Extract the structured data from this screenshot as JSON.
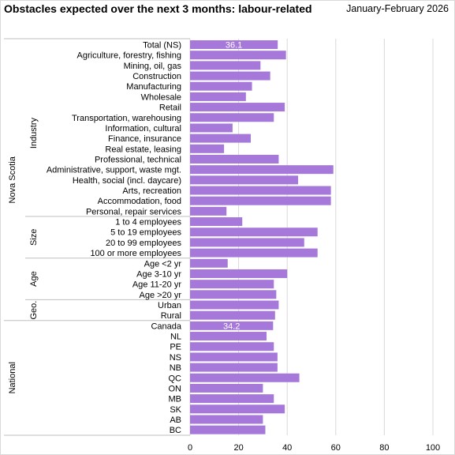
{
  "chart_data": {
    "type": "bar",
    "orientation": "horizontal",
    "title": "Obstacles expected over the next 3 months: labour-related",
    "period": "January-February  2026",
    "xlim": [
      0,
      100
    ],
    "xticks": [
      "0",
      "20",
      "40",
      "60",
      "80",
      "100"
    ],
    "gridlines": "vertical",
    "bar_color": "#a678d9",
    "groups": [
      {
        "outer": "Nova Scotia",
        "inner": "Industry",
        "start": 1,
        "end": 16
      },
      {
        "outer": "Nova Scotia",
        "inner": "Size",
        "start": 17,
        "end": 20
      },
      {
        "outer": "Nova Scotia",
        "inner": "Age",
        "start": 21,
        "end": 24
      },
      {
        "outer": "Nova Scotia",
        "inner": "Geo.",
        "start": 25,
        "end": 26
      },
      {
        "outer": "National",
        "inner": "",
        "start": 27,
        "end": 37
      }
    ],
    "outer_groups": [
      {
        "label": "Nova Scotia",
        "start": 0,
        "end": 26
      },
      {
        "label": "National",
        "start": 27,
        "end": 37
      }
    ],
    "categories": [
      "Total (NS)",
      "Agriculture, forestry, fishing",
      "Mining, oil, gas",
      "Construction",
      "Manufacturing",
      "Wholesale",
      "Retail",
      "Transportation, warehousing",
      "Information, cultural",
      "Finance, insurance",
      "Real estate, leasing",
      "Professional, technical",
      "Administrative, support, waste mgt.",
      "Health, social (incl. daycare)",
      "Arts, recreation",
      "Accommodation, food",
      "Personal, repair services",
      "1 to 4 employees",
      "5 to 19 employees",
      "20 to 99 employees",
      "100 or more employees",
      "Age <2 yr",
      "Age 3-10 yr",
      "Age 11-20 yr",
      "Age >20 yr",
      "Urban",
      "Rural",
      "Canada",
      "NL",
      "PE",
      "NS",
      "NB",
      "QC",
      "ON",
      "MB",
      "SK",
      "AB",
      "BC"
    ],
    "values": [
      36.1,
      39.5,
      29,
      33,
      25.5,
      23,
      39,
      34.5,
      17.5,
      25,
      14,
      36.5,
      59,
      44.5,
      58,
      58,
      15,
      21.5,
      52.5,
      47,
      52.5,
      15.5,
      40,
      34.5,
      35.5,
      36.5,
      35,
      34.2,
      31.5,
      34.5,
      36,
      36,
      45,
      30,
      34.5,
      39,
      30,
      31
    ],
    "data_labels": [
      {
        "index": 0,
        "text": "36.1"
      },
      {
        "index": 27,
        "text": "34.2"
      }
    ]
  }
}
